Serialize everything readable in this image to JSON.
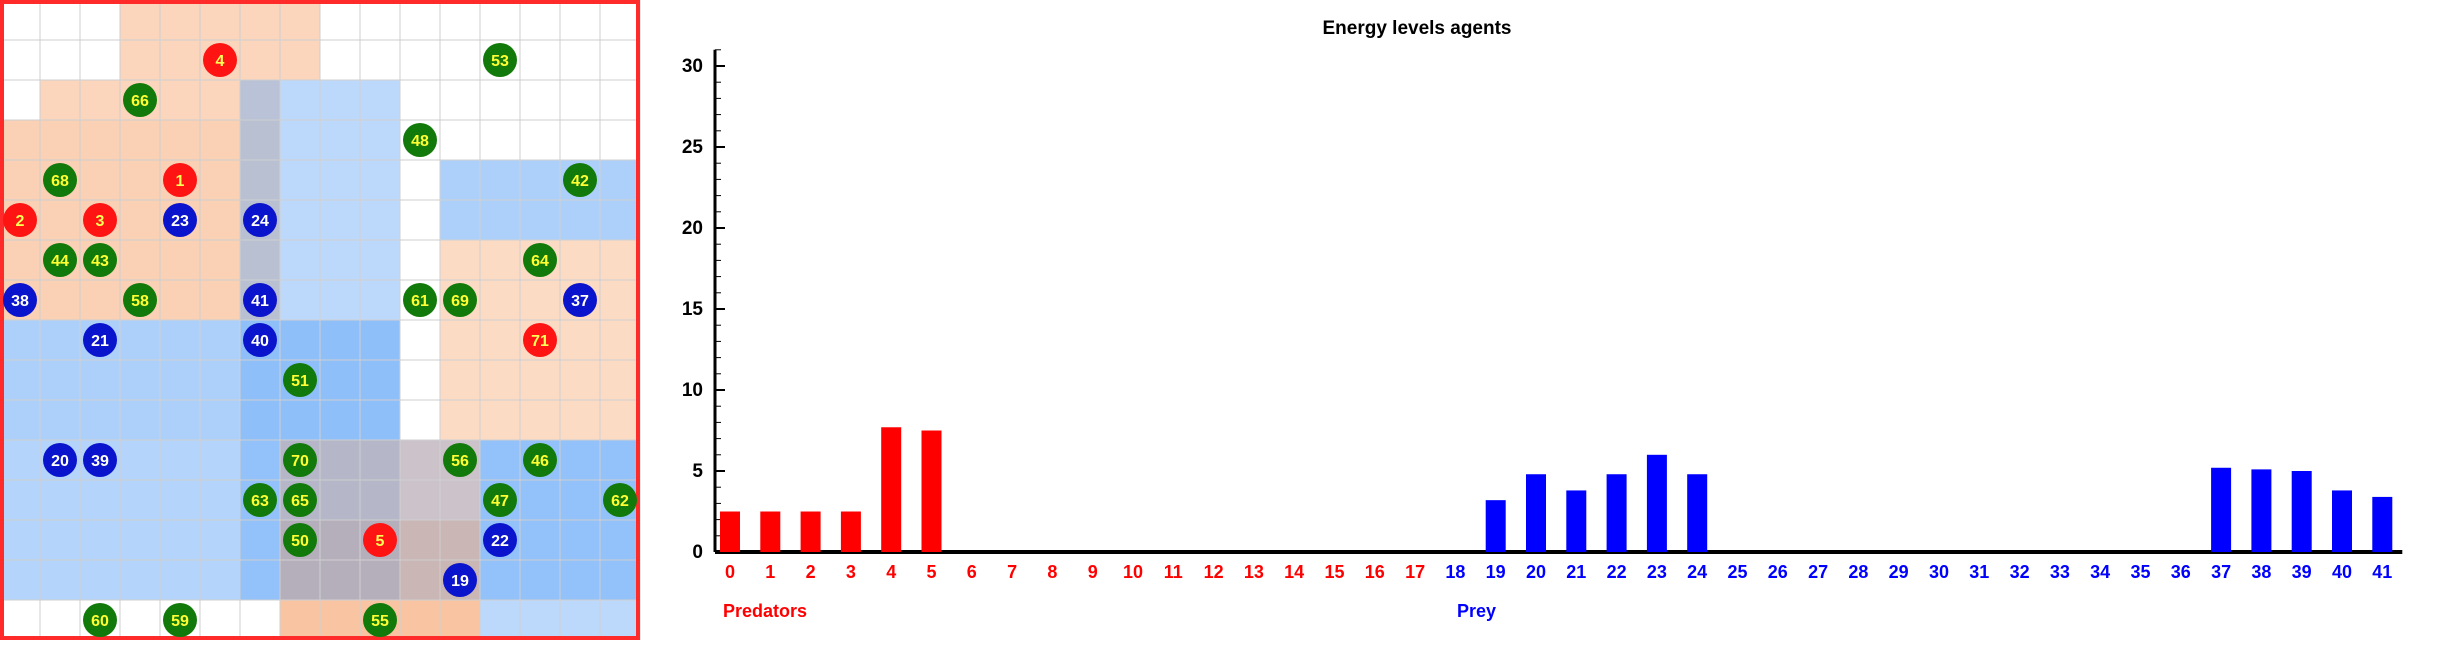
{
  "grid": {
    "cols": 16,
    "rows": 16,
    "colors": {
      "cell": "#ffffff",
      "gridline": "#cfcfcf",
      "border": "#ff2a2a",
      "predator_zone": "#f6a46c",
      "prey_zone": "#6aaaf7",
      "predator": "#ff1414",
      "prey": "#0a14cc",
      "plant": "#127a0a",
      "label_on_red": "#ffff55",
      "label_on_blue": "#ffffff",
      "label_on_green": "#ffff33"
    },
    "zones": [
      {
        "kind": "predator",
        "col": 3,
        "row": 0,
        "w": 5,
        "h": 2,
        "alpha": 0.45
      },
      {
        "kind": "predator",
        "col": 1,
        "row": 2,
        "w": 6,
        "h": 1,
        "alpha": 0.45
      },
      {
        "kind": "predator",
        "col": 0,
        "row": 3,
        "w": 7,
        "h": 5,
        "alpha": 0.5
      },
      {
        "kind": "predator",
        "col": 11,
        "row": 6,
        "w": 5,
        "h": 5,
        "alpha": 0.4
      },
      {
        "kind": "predator",
        "col": 7,
        "row": 13,
        "w": 5,
        "h": 3,
        "alpha": 0.45
      },
      {
        "kind": "prey",
        "col": 6,
        "row": 2,
        "w": 4,
        "h": 13,
        "alpha": 0.45
      },
      {
        "kind": "prey",
        "col": 0,
        "row": 8,
        "w": 10,
        "h": 3,
        "alpha": 0.55
      },
      {
        "kind": "prey",
        "col": 11,
        "row": 4,
        "w": 5,
        "h": 2,
        "alpha": 0.55
      },
      {
        "kind": "prey",
        "col": 0,
        "row": 11,
        "w": 16,
        "h": 4,
        "alpha": 0.5
      },
      {
        "kind": "prey",
        "col": 12,
        "row": 11,
        "w": 4,
        "h": 5,
        "alpha": 0.45
      },
      {
        "kind": "predator",
        "col": 7,
        "row": 11,
        "w": 5,
        "h": 5,
        "alpha": 0.35
      }
    ],
    "agents": [
      {
        "label": "4",
        "kind": "predator",
        "col": 5,
        "row": 1
      },
      {
        "label": "53",
        "kind": "plant",
        "col": 12,
        "row": 1
      },
      {
        "label": "66",
        "kind": "plant",
        "col": 3,
        "row": 2
      },
      {
        "label": "48",
        "kind": "plant",
        "col": 10,
        "row": 3
      },
      {
        "label": "68",
        "kind": "plant",
        "col": 1,
        "row": 4
      },
      {
        "label": "1",
        "kind": "predator",
        "col": 4,
        "row": 4
      },
      {
        "label": "42",
        "kind": "plant",
        "col": 14,
        "row": 4
      },
      {
        "label": "2",
        "kind": "predator",
        "col": 0,
        "row": 5
      },
      {
        "label": "3",
        "kind": "predator",
        "col": 2,
        "row": 5
      },
      {
        "label": "23",
        "kind": "prey",
        "col": 4,
        "row": 5
      },
      {
        "label": "24",
        "kind": "prey",
        "col": 6,
        "row": 5
      },
      {
        "label": "44",
        "kind": "plant",
        "col": 1,
        "row": 6
      },
      {
        "label": "43",
        "kind": "plant",
        "col": 2,
        "row": 6
      },
      {
        "label": "64",
        "kind": "plant",
        "col": 13,
        "row": 6
      },
      {
        "label": "38",
        "kind": "prey",
        "col": 0,
        "row": 7
      },
      {
        "label": "58",
        "kind": "plant",
        "col": 3,
        "row": 7
      },
      {
        "label": "41",
        "kind": "prey",
        "col": 6,
        "row": 7
      },
      {
        "label": "61",
        "kind": "plant",
        "col": 10,
        "row": 7
      },
      {
        "label": "69",
        "kind": "plant",
        "col": 11,
        "row": 7
      },
      {
        "label": "37",
        "kind": "prey",
        "col": 14,
        "row": 7
      },
      {
        "label": "21",
        "kind": "prey",
        "col": 2,
        "row": 8
      },
      {
        "label": "40",
        "kind": "prey",
        "col": 6,
        "row": 8
      },
      {
        "label": "71",
        "kind": "predator",
        "col": 13,
        "row": 8
      },
      {
        "label": "51",
        "kind": "plant",
        "col": 7,
        "row": 9
      },
      {
        "label": "20",
        "kind": "prey",
        "col": 1,
        "row": 11
      },
      {
        "label": "39",
        "kind": "prey",
        "col": 2,
        "row": 11
      },
      {
        "label": "70",
        "kind": "plant",
        "col": 7,
        "row": 11
      },
      {
        "label": "56",
        "kind": "plant",
        "col": 11,
        "row": 11
      },
      {
        "label": "46",
        "kind": "plant",
        "col": 13,
        "row": 11
      },
      {
        "label": "63",
        "kind": "plant",
        "col": 6,
        "row": 12
      },
      {
        "label": "65",
        "kind": "plant",
        "col": 7,
        "row": 12
      },
      {
        "label": "47",
        "kind": "plant",
        "col": 12,
        "row": 12
      },
      {
        "label": "62",
        "kind": "plant",
        "col": 15,
        "row": 12
      },
      {
        "label": "50",
        "kind": "plant",
        "col": 7,
        "row": 13
      },
      {
        "label": "5",
        "kind": "predator",
        "col": 9,
        "row": 13
      },
      {
        "label": "22",
        "kind": "prey",
        "col": 12,
        "row": 13
      },
      {
        "label": "19",
        "kind": "prey",
        "col": 11,
        "row": 14
      },
      {
        "label": "60",
        "kind": "plant",
        "col": 2,
        "row": 15
      },
      {
        "label": "59",
        "kind": "plant",
        "col": 4,
        "row": 15
      },
      {
        "label": "55",
        "kind": "plant",
        "col": 9,
        "row": 15
      }
    ]
  },
  "chart_data": {
    "type": "bar",
    "title": "Energy levels agents",
    "xlabel": "",
    "ylabel": "",
    "ylim": [
      0,
      31
    ],
    "yticks": [
      "0",
      "5",
      "10",
      "15",
      "20",
      "25",
      "30"
    ],
    "grid": false,
    "categories": [
      "0",
      "1",
      "2",
      "3",
      "4",
      "5",
      "6",
      "7",
      "8",
      "9",
      "10",
      "11",
      "12",
      "13",
      "14",
      "15",
      "16",
      "17",
      "18",
      "19",
      "20",
      "21",
      "22",
      "23",
      "24",
      "25",
      "26",
      "27",
      "28",
      "29",
      "30",
      "31",
      "32",
      "33",
      "34",
      "35",
      "36",
      "37",
      "38",
      "39",
      "40",
      "41"
    ],
    "values": [
      2.5,
      2.5,
      2.5,
      2.5,
      7.7,
      7.5,
      0,
      0,
      0,
      0,
      0,
      0,
      0,
      0,
      0,
      0,
      0,
      0,
      0,
      3.2,
      4.8,
      3.8,
      4.8,
      6.0,
      4.8,
      0,
      0,
      0,
      0,
      0,
      0,
      0,
      0,
      0,
      0,
      0,
      0,
      5.2,
      5.1,
      5.0,
      3.8,
      3.4
    ],
    "groups": [
      {
        "name": "Predators",
        "from": 0,
        "to": 17,
        "color": "#ff0000"
      },
      {
        "name": "Prey",
        "from": 18,
        "to": 41,
        "color": "#0000ff"
      }
    ]
  }
}
